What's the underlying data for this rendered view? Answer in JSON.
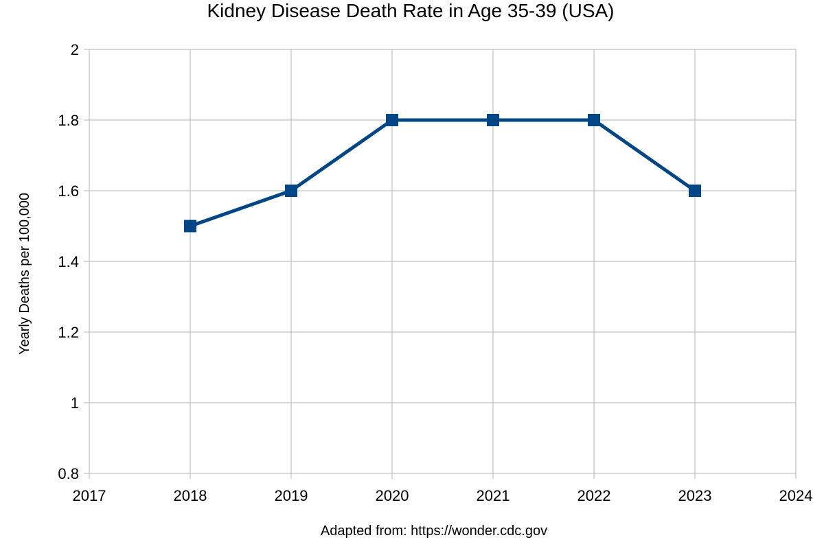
{
  "chart_data": {
    "type": "line",
    "title": "Kidney Disease Death Rate in Age 35-39 (USA)",
    "xlabel": "Adapted from: https://wonder.cdc.gov",
    "ylabel": "Yearly Deaths per 100,000",
    "xlim": [
      2017,
      2024
    ],
    "ylim": [
      0.8,
      2
    ],
    "x_ticks": [
      "2017",
      "2018",
      "2019",
      "2020",
      "2021",
      "2022",
      "2023",
      "2024"
    ],
    "y_ticks": [
      "0.8",
      "1",
      "1.2",
      "1.4",
      "1.6",
      "1.8",
      "2"
    ],
    "grid": true,
    "legend": "none",
    "series": [
      {
        "color": "#004586",
        "marker": "square",
        "x": [
          2018,
          2019,
          2020,
          2021,
          2022,
          2023
        ],
        "y": [
          1.5,
          1.6,
          1.8,
          1.8,
          1.8,
          1.6
        ]
      }
    ]
  }
}
